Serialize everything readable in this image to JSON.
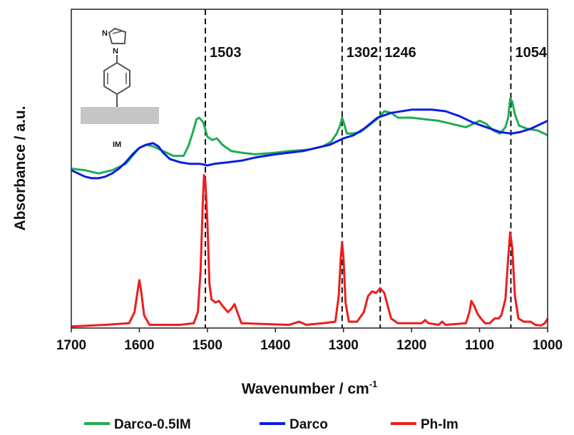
{
  "chart_data": {
    "type": "line",
    "title": "",
    "xlabel": "Wavenumber / cm",
    "xlabel_sup": "-1",
    "ylabel": "Absorbance / a.u.",
    "xlim": [
      1700,
      1000
    ],
    "x_reversed": true,
    "x_ticks": [
      1700,
      1600,
      1500,
      1400,
      1300,
      1200,
      1100,
      1000
    ],
    "x_tick_labels": [
      "1700",
      "1600",
      "1500",
      "1400",
      "1300",
      "1200",
      "1100",
      "1000"
    ],
    "ylim": [
      0,
      100
    ],
    "grid": false,
    "legend_position": "bottom",
    "reference_lines": [
      {
        "x": 1503,
        "label": "1503"
      },
      {
        "x": 1302,
        "label": "1302"
      },
      {
        "x": 1246,
        "label": "1246"
      },
      {
        "x": 1054,
        "label": "1054"
      }
    ],
    "annotations": [
      {
        "text": "IM",
        "note": "structure inset"
      }
    ],
    "series": [
      {
        "name": "Darco-0.5IM",
        "color": "#1fad54",
        "points": [
          [
            1700,
            50
          ],
          [
            1680,
            49.5
          ],
          [
            1660,
            48.5
          ],
          [
            1640,
            49.5
          ],
          [
            1620,
            51.5
          ],
          [
            1600,
            56.5
          ],
          [
            1590,
            57.5
          ],
          [
            1580,
            57
          ],
          [
            1570,
            56
          ],
          [
            1560,
            55
          ],
          [
            1550,
            54
          ],
          [
            1535,
            54
          ],
          [
            1528,
            57
          ],
          [
            1522,
            61
          ],
          [
            1516,
            65.5
          ],
          [
            1512,
            66
          ],
          [
            1506,
            64.5
          ],
          [
            1500,
            60
          ],
          [
            1493,
            59
          ],
          [
            1486,
            59.5
          ],
          [
            1478,
            57.5
          ],
          [
            1465,
            55.5
          ],
          [
            1450,
            55
          ],
          [
            1430,
            54.5
          ],
          [
            1400,
            55
          ],
          [
            1380,
            55.5
          ],
          [
            1350,
            56
          ],
          [
            1330,
            57
          ],
          [
            1318,
            58.5
          ],
          [
            1310,
            61
          ],
          [
            1305,
            63.5
          ],
          [
            1302,
            66
          ],
          [
            1299,
            64
          ],
          [
            1295,
            61
          ],
          [
            1288,
            61
          ],
          [
            1275,
            61.5
          ],
          [
            1260,
            64
          ],
          [
            1248,
            66
          ],
          [
            1240,
            68
          ],
          [
            1230,
            67.5
          ],
          [
            1220,
            66
          ],
          [
            1200,
            66
          ],
          [
            1180,
            65.5
          ],
          [
            1160,
            65
          ],
          [
            1140,
            64
          ],
          [
            1120,
            63
          ],
          [
            1100,
            65
          ],
          [
            1090,
            64
          ],
          [
            1080,
            62
          ],
          [
            1070,
            61
          ],
          [
            1062,
            63
          ],
          [
            1058,
            66
          ],
          [
            1055,
            72
          ],
          [
            1052,
            71
          ],
          [
            1048,
            67
          ],
          [
            1042,
            63.5
          ],
          [
            1030,
            62.5
          ],
          [
            1015,
            62
          ],
          [
            1005,
            61
          ],
          [
            1000,
            60.5
          ]
        ]
      },
      {
        "name": "Darco",
        "color": "#0a1ee0",
        "points": [
          [
            1700,
            49.5
          ],
          [
            1690,
            48.5
          ],
          [
            1680,
            47.5
          ],
          [
            1670,
            47
          ],
          [
            1660,
            47
          ],
          [
            1650,
            47.5
          ],
          [
            1640,
            48.5
          ],
          [
            1630,
            50
          ],
          [
            1620,
            52
          ],
          [
            1610,
            54.5
          ],
          [
            1600,
            56.5
          ],
          [
            1590,
            57.5
          ],
          [
            1580,
            58
          ],
          [
            1572,
            57
          ],
          [
            1565,
            55
          ],
          [
            1555,
            53
          ],
          [
            1540,
            52
          ],
          [
            1525,
            51.5
          ],
          [
            1510,
            51.5
          ],
          [
            1500,
            51
          ],
          [
            1490,
            51.5
          ],
          [
            1470,
            52
          ],
          [
            1450,
            52.5
          ],
          [
            1430,
            53.5
          ],
          [
            1400,
            54.5
          ],
          [
            1380,
            55
          ],
          [
            1360,
            55.5
          ],
          [
            1340,
            56.5
          ],
          [
            1320,
            57.5
          ],
          [
            1310,
            58.5
          ],
          [
            1300,
            59.5
          ],
          [
            1285,
            60.5
          ],
          [
            1270,
            62.5
          ],
          [
            1250,
            66
          ],
          [
            1230,
            67.5
          ],
          [
            1200,
            68.5
          ],
          [
            1170,
            68.5
          ],
          [
            1150,
            68
          ],
          [
            1130,
            66.5
          ],
          [
            1110,
            64.5
          ],
          [
            1090,
            63
          ],
          [
            1070,
            61.5
          ],
          [
            1054,
            61
          ],
          [
            1040,
            61.5
          ],
          [
            1025,
            62.5
          ],
          [
            1010,
            64
          ],
          [
            1000,
            65
          ]
        ]
      },
      {
        "name": "Ph-Im",
        "color": "#ee1c1c",
        "points": [
          [
            1700,
            0.5
          ],
          [
            1650,
            1
          ],
          [
            1615,
            1.5
          ],
          [
            1607,
            5
          ],
          [
            1603,
            11
          ],
          [
            1600,
            15
          ],
          [
            1597,
            11
          ],
          [
            1593,
            4
          ],
          [
            1585,
            1
          ],
          [
            1540,
            1
          ],
          [
            1520,
            1.5
          ],
          [
            1514,
            5
          ],
          [
            1510,
            18
          ],
          [
            1507,
            38
          ],
          [
            1505,
            48
          ],
          [
            1503,
            46
          ],
          [
            1500,
            33
          ],
          [
            1497,
            14
          ],
          [
            1494,
            9
          ],
          [
            1488,
            8
          ],
          [
            1483,
            8.5
          ],
          [
            1478,
            7
          ],
          [
            1470,
            5
          ],
          [
            1465,
            6
          ],
          [
            1460,
            7.5
          ],
          [
            1456,
            5
          ],
          [
            1450,
            1.5
          ],
          [
            1380,
            1
          ],
          [
            1365,
            2
          ],
          [
            1355,
            1
          ],
          [
            1330,
            1.5
          ],
          [
            1312,
            2
          ],
          [
            1307,
            10
          ],
          [
            1304,
            22
          ],
          [
            1302,
            27
          ],
          [
            1300,
            22
          ],
          [
            1297,
            8
          ],
          [
            1292,
            2
          ],
          [
            1280,
            2
          ],
          [
            1270,
            5
          ],
          [
            1264,
            10
          ],
          [
            1258,
            11.5
          ],
          [
            1252,
            11
          ],
          [
            1246,
            12.5
          ],
          [
            1240,
            11
          ],
          [
            1235,
            7
          ],
          [
            1230,
            3
          ],
          [
            1220,
            1.5
          ],
          [
            1185,
            1.5
          ],
          [
            1180,
            2.5
          ],
          [
            1175,
            1.5
          ],
          [
            1160,
            1
          ],
          [
            1155,
            2
          ],
          [
            1150,
            1
          ],
          [
            1120,
            1.5
          ],
          [
            1115,
            5
          ],
          [
            1112,
            8.5
          ],
          [
            1108,
            7
          ],
          [
            1103,
            4.5
          ],
          [
            1098,
            3
          ],
          [
            1092,
            1.5
          ],
          [
            1085,
            1.5
          ],
          [
            1078,
            3
          ],
          [
            1072,
            3
          ],
          [
            1068,
            4
          ],
          [
            1062,
            9
          ],
          [
            1058,
            22
          ],
          [
            1055,
            30
          ],
          [
            1052,
            25
          ],
          [
            1048,
            10
          ],
          [
            1043,
            3
          ],
          [
            1035,
            2
          ],
          [
            1025,
            2
          ],
          [
            1018,
            1
          ],
          [
            1010,
            0.8
          ],
          [
            1004,
            1.5
          ],
          [
            1001,
            2.5
          ],
          [
            1000,
            3
          ]
        ]
      }
    ]
  }
}
